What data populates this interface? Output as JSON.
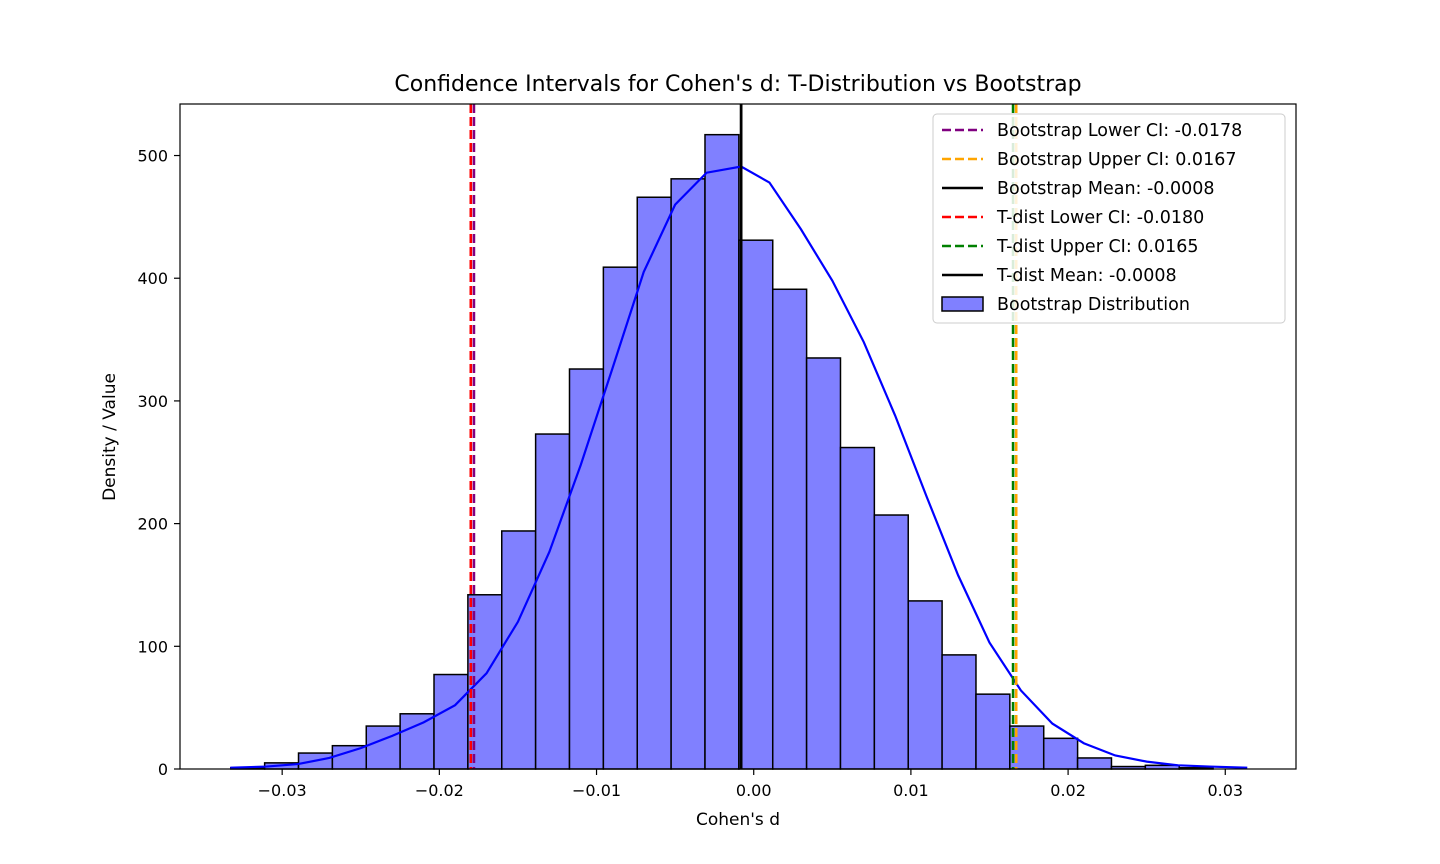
{
  "chart_data": {
    "type": "bar",
    "title": "Confidence Intervals for Cohen's d: T-Distribution vs Bootstrap",
    "xlabel": "Cohen's d",
    "ylabel": "Density / Value",
    "xlim": [
      -0.0365,
      0.0345
    ],
    "ylim": [
      0,
      542
    ],
    "xticks": [
      -0.03,
      -0.02,
      -0.01,
      0.0,
      0.01,
      0.02,
      0.03
    ],
    "xtick_labels": [
      "−0.03",
      "−0.02",
      "−0.01",
      "0.00",
      "0.01",
      "0.02",
      "0.03"
    ],
    "yticks": [
      0,
      100,
      200,
      300,
      400,
      500
    ],
    "ytick_labels": [
      "0",
      "100",
      "200",
      "300",
      "400",
      "500"
    ],
    "grid": false,
    "legend_position": "top-right",
    "histogram": {
      "name": "Bootstrap Distribution",
      "color": "#8080ff",
      "edge_color": "#000000",
      "bin_start": -0.03327,
      "bin_width": 0.002155,
      "counts": [
        1,
        5,
        13,
        19,
        35,
        45,
        77,
        142,
        194,
        273,
        326,
        409,
        466,
        481,
        517,
        431,
        391,
        335,
        262,
        207,
        137,
        93,
        61,
        35,
        25,
        9,
        2,
        3,
        1
      ]
    },
    "kde": {
      "color": "#0000ff",
      "points": [
        [
          -0.0333,
          1
        ],
        [
          -0.031,
          2
        ],
        [
          -0.029,
          4
        ],
        [
          -0.027,
          9
        ],
        [
          -0.025,
          17
        ],
        [
          -0.023,
          27
        ],
        [
          -0.021,
          38
        ],
        [
          -0.019,
          52
        ],
        [
          -0.017,
          78
        ],
        [
          -0.015,
          120
        ],
        [
          -0.013,
          177
        ],
        [
          -0.011,
          248
        ],
        [
          -0.009,
          326
        ],
        [
          -0.007,
          405
        ],
        [
          -0.005,
          460
        ],
        [
          -0.003,
          486
        ],
        [
          -0.0008,
          491
        ],
        [
          0.001,
          478
        ],
        [
          0.003,
          440
        ],
        [
          0.005,
          398
        ],
        [
          0.007,
          348
        ],
        [
          0.009,
          288
        ],
        [
          0.011,
          222
        ],
        [
          0.013,
          158
        ],
        [
          0.015,
          103
        ],
        [
          0.017,
          64
        ],
        [
          0.019,
          37
        ],
        [
          0.021,
          21
        ],
        [
          0.023,
          11
        ],
        [
          0.025,
          6
        ],
        [
          0.027,
          3
        ],
        [
          0.029,
          2
        ],
        [
          0.0314,
          1
        ]
      ]
    },
    "vertical_lines": [
      {
        "name": "Bootstrap Lower CI: -0.0178",
        "x": -0.0178,
        "color": "#800080",
        "style": "dashed"
      },
      {
        "name": "Bootstrap Upper CI: 0.0167",
        "x": 0.0167,
        "color": "#ffa500",
        "style": "dashed"
      },
      {
        "name": "Bootstrap Mean: -0.0008",
        "x": -0.0008,
        "color": "#000000",
        "style": "solid"
      },
      {
        "name": "T-dist Lower CI: -0.0180",
        "x": -0.018,
        "color": "#ff0000",
        "style": "dashed"
      },
      {
        "name": "T-dist Upper CI: 0.0165",
        "x": 0.0165,
        "color": "#008000",
        "style": "dashed"
      },
      {
        "name": "T-dist Mean: -0.0008",
        "x": -0.0008,
        "color": "#000000",
        "style": "solid"
      }
    ]
  }
}
